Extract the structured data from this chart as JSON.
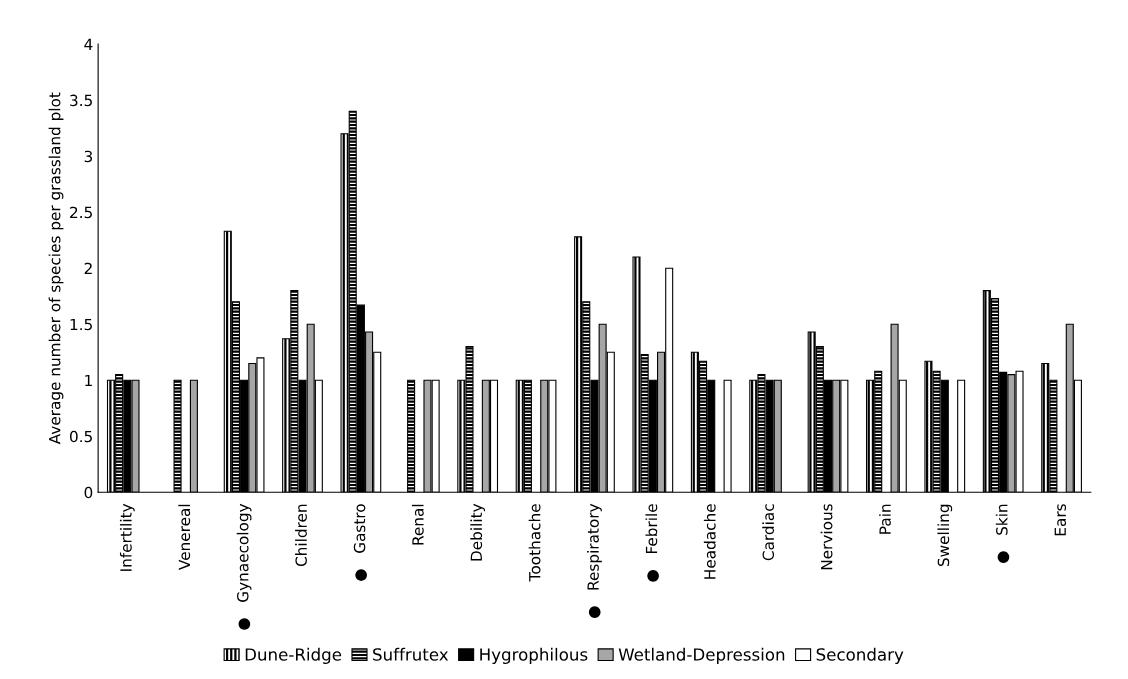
{
  "chart_data": {
    "type": "bar",
    "ylabel": "Average number of species per grassland plot",
    "categories": [
      "Infertility",
      "Venereal",
      "●   Gynaecology",
      "Children",
      "●   Gastro",
      "Renal",
      "Debility",
      "Toothache",
      "●   Respiratory",
      "●   Febrile",
      "Headache",
      "Cardiac",
      "Nervious",
      "Pain",
      "Swelling",
      "●   Skin",
      "Ears"
    ],
    "series": [
      {
        "name": "Dune-Ridge",
        "color": "#000000",
        "values": [
          1,
          null,
          2.33,
          1.37,
          3.2,
          null,
          1,
          1,
          2.28,
          2.1,
          1.25,
          1,
          1.43,
          1,
          1.17,
          1.8,
          1.15
        ]
      },
      {
        "name": "Suffrutex",
        "color": "#000000",
        "values": [
          1.05,
          1,
          1.7,
          1.8,
          3.4,
          1,
          1.3,
          1,
          1.7,
          1.23,
          1.17,
          1.05,
          1.3,
          1.08,
          1.08,
          1.73,
          1
        ]
      },
      {
        "name": "Hygrophilous",
        "color": "#000000",
        "values": [
          1,
          null,
          1,
          1,
          1.67,
          null,
          null,
          null,
          1,
          1,
          1,
          1,
          1,
          null,
          1,
          1.07,
          null
        ]
      },
      {
        "name": "Wetland-Depression",
        "color": "#a6a6a6",
        "values": [
          1,
          1,
          1.15,
          1.5,
          1.43,
          1,
          1,
          1,
          1.5,
          1.25,
          null,
          1,
          1,
          1.5,
          null,
          1.05,
          1.5
        ]
      },
      {
        "name": "Secondary",
        "color": "#ffffff",
        "values": [
          null,
          null,
          1.2,
          1,
          1.25,
          1,
          1,
          1,
          1.25,
          2,
          1,
          null,
          1,
          1,
          1,
          1.08,
          1
        ]
      }
    ],
    "ylim": [
      0,
      4
    ],
    "yticks": [
      0,
      0.5,
      1,
      1.5,
      2,
      2.5,
      3,
      3.5,
      4
    ],
    "grid": false,
    "legend": "bottom"
  }
}
